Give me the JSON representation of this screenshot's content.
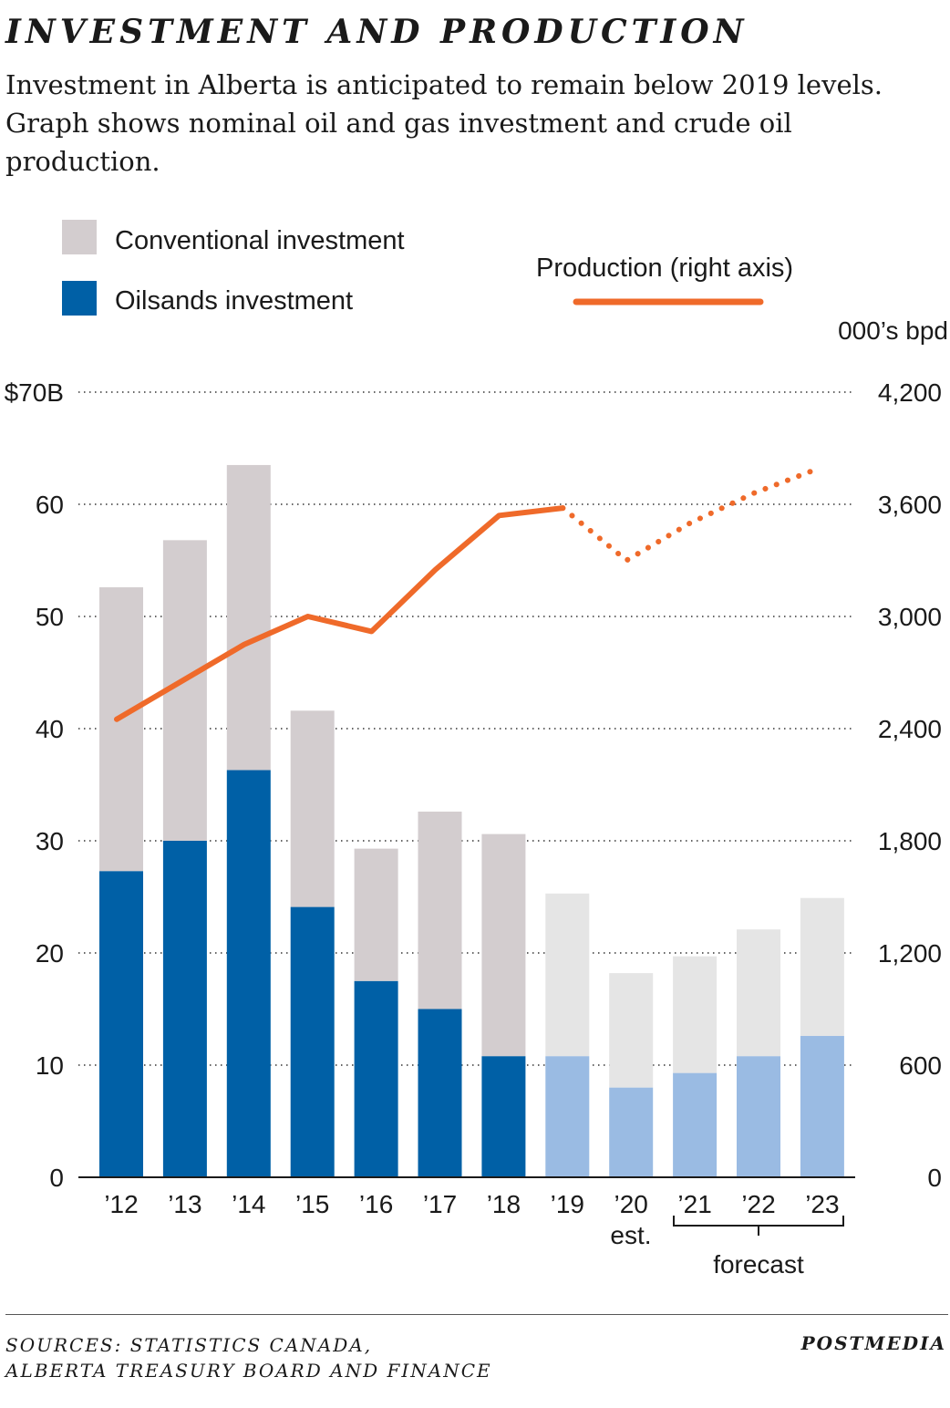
{
  "header": {
    "title": "INVESTMENT AND PRODUCTION",
    "subtitle": "Investment in Alberta is anticipated to remain below 2019 levels. Graph shows nominal oil and gas investment and crude oil production."
  },
  "legend": {
    "conventional": "Conventional investment",
    "oilsands": "Oilsands investment",
    "production": "Production (right axis)"
  },
  "axes": {
    "right_unit": "000’s bpd",
    "forecast_label": "forecast",
    "est_label": "est."
  },
  "colors": {
    "conventional": "#d3cdcf",
    "oilsands": "#0060a6",
    "conventional_forecast": "#e5e5e5",
    "oilsands_forecast": "#9abbe3",
    "production": "#ef6a2a"
  },
  "footer": {
    "sources_line1": "SOURCES: STATISTICS CANADA,",
    "sources_line2": "ALBERTA TREASURY BOARD AND FINANCE",
    "credit": "POSTMEDIA"
  },
  "chart_data": {
    "type": "bar",
    "stacked": true,
    "categories": [
      "’12",
      "’13",
      "’14",
      "’15",
      "’16",
      "’17",
      "’18",
      "’19",
      "’20",
      "’21",
      "’22",
      "’23"
    ],
    "forecast_from_index": 7,
    "series": [
      {
        "name": "Oilsands investment",
        "values": [
          27.3,
          30.0,
          36.3,
          24.1,
          17.5,
          15.0,
          10.8,
          10.8,
          8.0,
          9.3,
          10.8,
          12.6
        ]
      },
      {
        "name": "Conventional investment",
        "values": [
          25.3,
          26.8,
          27.2,
          17.5,
          11.8,
          17.6,
          19.8,
          14.5,
          10.2,
          10.4,
          11.3,
          12.3
        ]
      }
    ],
    "line_series": {
      "name": "Production (right axis)",
      "axis": "right",
      "x": [
        "’12",
        "’13",
        "’14",
        "’15",
        "’16",
        "’17",
        "’18",
        "’19",
        "’20",
        "’21",
        "’22",
        "’23"
      ],
      "values": [
        2450,
        2650,
        2850,
        3000,
        2920,
        3250,
        3540,
        3580,
        3300,
        3500,
        3660,
        3790
      ],
      "solid_through_index": 7
    },
    "ylim": [
      0,
      70
    ],
    "y_ticks": [
      0,
      10,
      20,
      30,
      40,
      50,
      60,
      70
    ],
    "y_tick_labels": [
      "0",
      "10",
      "20",
      "30",
      "40",
      "50",
      "60",
      "$70B"
    ],
    "y2lim": [
      0,
      4200
    ],
    "y2_ticks": [
      0,
      600,
      1200,
      1800,
      2400,
      3000,
      3600,
      4200
    ],
    "y2_tick_labels": [
      "0",
      "600",
      "1,200",
      "1,800",
      "2,400",
      "3,000",
      "3,600",
      "4,200"
    ],
    "grid": true
  }
}
